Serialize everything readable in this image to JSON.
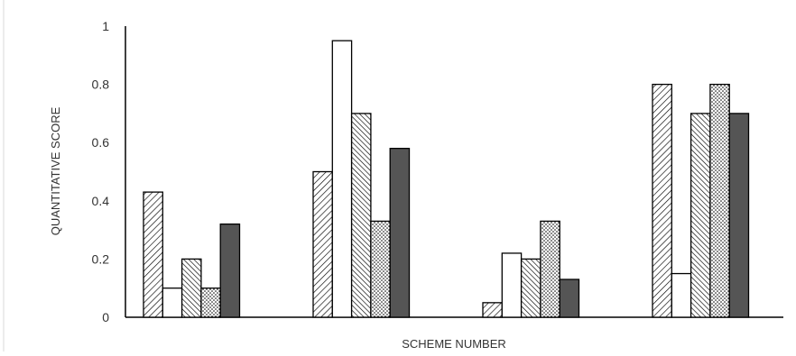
{
  "chart_data": {
    "type": "bar",
    "title": "",
    "xlabel": "SCHEME NUMBER",
    "ylabel": "QUANTITATIVE SCORE",
    "ylim": [
      0,
      1
    ],
    "yticks": [
      "0",
      "0.2",
      "0.4",
      "0.6",
      "0.8",
      "1"
    ],
    "ytick_values": [
      0,
      0.2,
      0.4,
      0.6,
      0.8,
      1
    ],
    "grid": false,
    "legend": "none",
    "categories": [
      "",
      "",
      "",
      ""
    ],
    "series": [
      {
        "pattern": "hatch-forward",
        "values": [
          0.43,
          0.5,
          0.05,
          0.8
        ]
      },
      {
        "pattern": "empty",
        "values": [
          0.1,
          0.95,
          0.22,
          0.15
        ]
      },
      {
        "pattern": "hatch-back",
        "values": [
          0.2,
          0.7,
          0.2,
          0.7
        ]
      },
      {
        "pattern": "dots",
        "values": [
          0.1,
          0.33,
          0.33,
          0.8
        ]
      },
      {
        "pattern": "solid-dark",
        "values": [
          0.32,
          0.58,
          0.13,
          0.7
        ]
      }
    ],
    "colors": {
      "stroke": "#000000",
      "dark_fill": "#555555",
      "axis": "#000000",
      "text": "#333333"
    }
  }
}
